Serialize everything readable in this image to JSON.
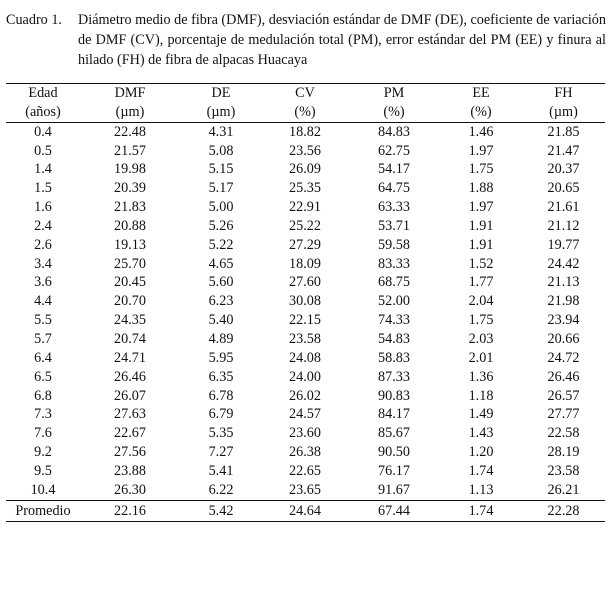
{
  "caption": {
    "label": "Cuadro 1.",
    "text": "Diámetro medio de fibra (DMF), desviación estándar de DMF (DE), coeficiente de variación de DMF (CV), porcentaje de medulación total (PM), error estándar del PM (EE) y finura al hilado (FH) de fibra de alpacas Huacaya"
  },
  "table": {
    "headers": [
      {
        "name": "Edad",
        "unit": "(años)"
      },
      {
        "name": "DMF",
        "unit": "(µm)"
      },
      {
        "name": "DE",
        "unit": "(µm)"
      },
      {
        "name": "CV",
        "unit": "(%)"
      },
      {
        "name": "PM",
        "unit": "(%)"
      },
      {
        "name": "EE",
        "unit": "(%)"
      },
      {
        "name": "FH",
        "unit": "(µm)"
      }
    ],
    "rows": [
      [
        "0.4",
        "22.48",
        "4.31",
        "18.82",
        "84.83",
        "1.46",
        "21.85"
      ],
      [
        "0.5",
        "21.57",
        "5.08",
        "23.56",
        "62.75",
        "1.97",
        "21.47"
      ],
      [
        "1.4",
        "19.98",
        "5.15",
        "26.09",
        "54.17",
        "1.75",
        "20.37"
      ],
      [
        "1.5",
        "20.39",
        "5.17",
        "25.35",
        "64.75",
        "1.88",
        "20.65"
      ],
      [
        "1.6",
        "21.83",
        "5.00",
        "22.91",
        "63.33",
        "1.97",
        "21.61"
      ],
      [
        "2.4",
        "20.88",
        "5.26",
        "25.22",
        "53.71",
        "1.91",
        "21.12"
      ],
      [
        "2.6",
        "19.13",
        "5.22",
        "27.29",
        "59.58",
        "1.91",
        "19.77"
      ],
      [
        "3.4",
        "25.70",
        "4.65",
        "18.09",
        "83.33",
        "1.52",
        "24.42"
      ],
      [
        "3.6",
        "20.45",
        "5.60",
        "27.60",
        "68.75",
        "1.77",
        "21.13"
      ],
      [
        "4.4",
        "20.70",
        "6.23",
        "30.08",
        "52.00",
        "2.04",
        "21.98"
      ],
      [
        "5.5",
        "24.35",
        "5.40",
        "22.15",
        "74.33",
        "1.75",
        "23.94"
      ],
      [
        "5.7",
        "20.74",
        "4.89",
        "23.58",
        "54.83",
        "2.03",
        "20.66"
      ],
      [
        "6.4",
        "24.71",
        "5.95",
        "24.08",
        "58.83",
        "2.01",
        "24.72"
      ],
      [
        "6.5",
        "26.46",
        "6.35",
        "24.00",
        "87.33",
        "1.36",
        "26.46"
      ],
      [
        "6.8",
        "26.07",
        "6.78",
        "26.02",
        "90.83",
        "1.18",
        "26.57"
      ],
      [
        "7.3",
        "27.63",
        "6.79",
        "24.57",
        "84.17",
        "1.49",
        "27.77"
      ],
      [
        "7.6",
        "22.67",
        "5.35",
        "23.60",
        "85.67",
        "1.43",
        "22.58"
      ],
      [
        "9.2",
        "27.56",
        "7.27",
        "26.38",
        "90.50",
        "1.20",
        "28.19"
      ],
      [
        "9.5",
        "23.88",
        "5.41",
        "22.65",
        "76.17",
        "1.74",
        "23.58"
      ],
      [
        "10.4",
        "26.30",
        "6.22",
        "23.65",
        "91.67",
        "1.13",
        "26.21"
      ]
    ],
    "footer": [
      "Promedio",
      "22.16",
      "5.42",
      "24.64",
      "67.44",
      "1.74",
      "22.28"
    ]
  }
}
